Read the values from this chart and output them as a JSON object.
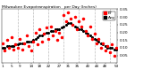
{
  "title": "Evapotranspiration   per Day (Inches)",
  "title_left": "Milwaukee",
  "background_color": "#ffffff",
  "plot_bg": "#ffffff",
  "grid_color": "#bbbbbb",
  "red_color": "#ff0000",
  "black_color": "#000000",
  "ylim": [
    0.0,
    0.35
  ],
  "ytick_vals": [
    0.05,
    0.1,
    0.15,
    0.2,
    0.25,
    0.3,
    0.35
  ],
  "legend_label_red": "ET",
  "legend_label_black": "Avg",
  "num_points": 53,
  "red_values": [
    0.13,
    0.08,
    0.15,
    0.1,
    0.17,
    0.09,
    0.12,
    0.1,
    0.16,
    0.09,
    0.13,
    0.18,
    0.11,
    0.08,
    0.14,
    0.2,
    0.12,
    0.22,
    0.14,
    0.19,
    0.23,
    0.16,
    0.24,
    0.18,
    0.21,
    0.15,
    0.2,
    0.17,
    0.31,
    0.27,
    0.33,
    0.29,
    0.25,
    0.3,
    0.22,
    0.27,
    0.24,
    0.29,
    0.21,
    0.18,
    0.24,
    0.16,
    0.19,
    0.13,
    0.16,
    0.1,
    0.13,
    0.08,
    0.11,
    0.07,
    0.12,
    0.05,
    0.1
  ],
  "black_values": [
    0.1,
    0.1,
    0.11,
    0.11,
    0.11,
    0.11,
    0.12,
    0.12,
    0.13,
    0.13,
    0.13,
    0.14,
    0.14,
    0.14,
    0.15,
    0.16,
    0.17,
    0.18,
    0.18,
    0.19,
    0.2,
    0.2,
    0.21,
    0.21,
    0.22,
    0.22,
    0.22,
    0.23,
    0.24,
    0.25,
    0.26,
    0.26,
    0.25,
    0.24,
    0.23,
    0.22,
    0.22,
    0.21,
    0.2,
    0.19,
    0.18,
    0.17,
    0.16,
    0.15,
    0.14,
    0.13,
    0.12,
    0.11,
    0.1,
    0.1,
    0.1,
    0.09,
    0.09
  ],
  "vline_positions": [
    7,
    14,
    21,
    28,
    35,
    42,
    49
  ],
  "xtick_positions": [
    0,
    4,
    8,
    13,
    17,
    21,
    26,
    30,
    34,
    39,
    43,
    47,
    52
  ],
  "xtick_labels": [
    "1",
    "5",
    "9",
    "14",
    "18",
    "22",
    "27",
    "31",
    "35",
    "40",
    "44",
    "48",
    "53"
  ]
}
